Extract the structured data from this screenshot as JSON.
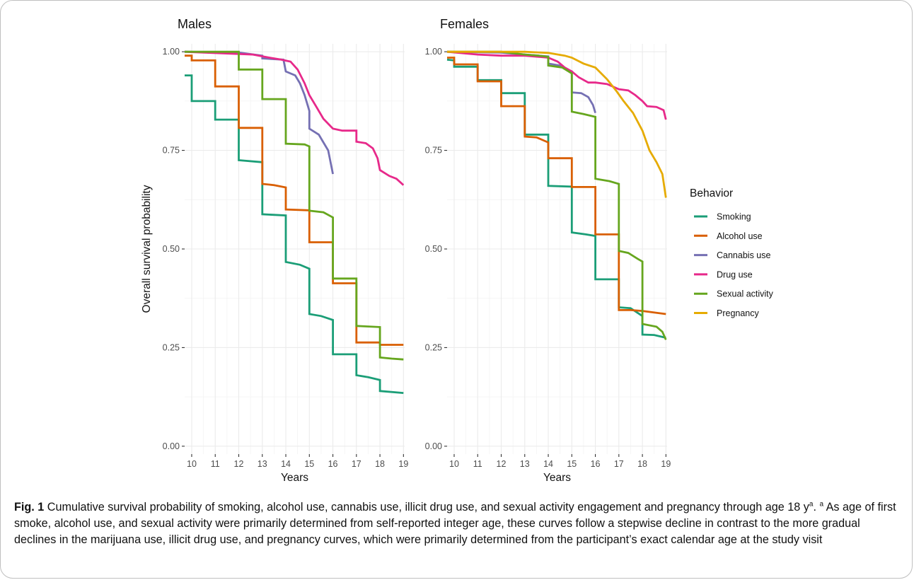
{
  "chart_data": [
    {
      "type": "line",
      "title": "Males",
      "xlabel": "Years",
      "ylabel": "Overall survival probability",
      "x_ticks": [
        10,
        11,
        12,
        13,
        14,
        15,
        16,
        17,
        18,
        19
      ],
      "y_ticks": [
        "0.00",
        "0.25",
        "0.50",
        "0.75",
        "1.00"
      ],
      "xlim": [
        9.7,
        19.05
      ],
      "ylim": [
        -0.02,
        1.02
      ],
      "grid": true,
      "series": [
        {
          "name": "Smoking",
          "color": "#1b9e77",
          "step": true,
          "points": [
            [
              9.7,
              0.94
            ],
            [
              10,
              0.94
            ],
            [
              10,
              0.875
            ],
            [
              11,
              0.875
            ],
            [
              11,
              0.828
            ],
            [
              12,
              0.828
            ],
            [
              12,
              0.725
            ],
            [
              13,
              0.72
            ],
            [
              13,
              0.588
            ],
            [
              14,
              0.585
            ],
            [
              14,
              0.467
            ],
            [
              14.6,
              0.46
            ],
            [
              15,
              0.45
            ],
            [
              15,
              0.335
            ],
            [
              15.5,
              0.33
            ],
            [
              16,
              0.32
            ],
            [
              16,
              0.233
            ],
            [
              17,
              0.233
            ],
            [
              17,
              0.18
            ],
            [
              17.5,
              0.175
            ],
            [
              18,
              0.168
            ],
            [
              18,
              0.14
            ],
            [
              19,
              0.135
            ]
          ]
        },
        {
          "name": "Alcohol use",
          "color": "#d95f02",
          "step": true,
          "points": [
            [
              9.7,
              0.99
            ],
            [
              10,
              0.99
            ],
            [
              10,
              0.978
            ],
            [
              11,
              0.978
            ],
            [
              11,
              0.912
            ],
            [
              12,
              0.912
            ],
            [
              12,
              0.807
            ],
            [
              13,
              0.807
            ],
            [
              13,
              0.665
            ],
            [
              13.5,
              0.662
            ],
            [
              14,
              0.656
            ],
            [
              14,
              0.6
            ],
            [
              15,
              0.598
            ],
            [
              15,
              0.517
            ],
            [
              16,
              0.517
            ],
            [
              16,
              0.413
            ],
            [
              17,
              0.413
            ],
            [
              17,
              0.263
            ],
            [
              18,
              0.263
            ],
            [
              18,
              0.257
            ],
            [
              19,
              0.257
            ]
          ]
        },
        {
          "name": "Cannabis use",
          "color": "#7570b3",
          "step": false,
          "points": [
            [
              9.7,
              1.0
            ],
            [
              12,
              0.998
            ],
            [
              13,
              0.99
            ],
            [
              13,
              0.983
            ],
            [
              13.9,
              0.98
            ],
            [
              14,
              0.95
            ],
            [
              14.4,
              0.94
            ],
            [
              14.6,
              0.92
            ],
            [
              14.8,
              0.89
            ],
            [
              15,
              0.85
            ],
            [
              15,
              0.805
            ],
            [
              15.4,
              0.79
            ],
            [
              15.6,
              0.77
            ],
            [
              15.8,
              0.75
            ],
            [
              16,
              0.69
            ]
          ]
        },
        {
          "name": "Drug use",
          "color": "#e7298a",
          "step": false,
          "points": [
            [
              9.7,
              1.0
            ],
            [
              12.6,
              0.993
            ],
            [
              13.3,
              0.985
            ],
            [
              13.8,
              0.98
            ],
            [
              14.2,
              0.975
            ],
            [
              14.5,
              0.955
            ],
            [
              14.8,
              0.92
            ],
            [
              15,
              0.89
            ],
            [
              15.3,
              0.86
            ],
            [
              15.6,
              0.83
            ],
            [
              16,
              0.805
            ],
            [
              16.4,
              0.8
            ],
            [
              17,
              0.8
            ],
            [
              17,
              0.772
            ],
            [
              17.4,
              0.768
            ],
            [
              17.7,
              0.755
            ],
            [
              17.9,
              0.73
            ],
            [
              18,
              0.7
            ],
            [
              18.4,
              0.685
            ],
            [
              18.7,
              0.678
            ],
            [
              19,
              0.662
            ]
          ]
        },
        {
          "name": "Sexual activity",
          "color": "#66a61e",
          "step": true,
          "points": [
            [
              9.7,
              1.0
            ],
            [
              11,
              1.0
            ],
            [
              12,
              1.0
            ],
            [
              12,
              0.955
            ],
            [
              13,
              0.955
            ],
            [
              13,
              0.88
            ],
            [
              14,
              0.88
            ],
            [
              14,
              0.767
            ],
            [
              14.8,
              0.765
            ],
            [
              15,
              0.76
            ],
            [
              15,
              0.597
            ],
            [
              15.6,
              0.593
            ],
            [
              16,
              0.58
            ],
            [
              16,
              0.425
            ],
            [
              17,
              0.425
            ],
            [
              17,
              0.305
            ],
            [
              18,
              0.302
            ],
            [
              18,
              0.225
            ],
            [
              18.5,
              0.222
            ],
            [
              19,
              0.22
            ]
          ]
        },
        {
          "name": "Pregnancy",
          "color": "#e6ab02",
          "step": false,
          "points": []
        }
      ]
    },
    {
      "type": "line",
      "title": "Females",
      "xlabel": "Years",
      "ylabel": "",
      "x_ticks": [
        10,
        11,
        12,
        13,
        14,
        15,
        16,
        17,
        18,
        19
      ],
      "y_ticks": [
        "0.00",
        "0.25",
        "0.50",
        "0.75",
        "1.00"
      ],
      "xlim": [
        9.7,
        19.05
      ],
      "ylim": [
        -0.02,
        1.02
      ],
      "grid": true,
      "series": [
        {
          "name": "Smoking",
          "color": "#1b9e77",
          "step": true,
          "points": [
            [
              9.7,
              0.98
            ],
            [
              10,
              0.978
            ],
            [
              10,
              0.962
            ],
            [
              11,
              0.962
            ],
            [
              11,
              0.928
            ],
            [
              12,
              0.928
            ],
            [
              12,
              0.895
            ],
            [
              13,
              0.895
            ],
            [
              13,
              0.79
            ],
            [
              14,
              0.79
            ],
            [
              14,
              0.66
            ],
            [
              15,
              0.658
            ],
            [
              15,
              0.542
            ],
            [
              15.6,
              0.537
            ],
            [
              16,
              0.533
            ],
            [
              16,
              0.423
            ],
            [
              17,
              0.423
            ],
            [
              17,
              0.352
            ],
            [
              17.5,
              0.35
            ],
            [
              18,
              0.33
            ],
            [
              18,
              0.283
            ],
            [
              18.5,
              0.282
            ],
            [
              19,
              0.275
            ]
          ]
        },
        {
          "name": "Alcohol use",
          "color": "#d95f02",
          "step": true,
          "points": [
            [
              9.7,
              0.985
            ],
            [
              10,
              0.985
            ],
            [
              10,
              0.968
            ],
            [
              11,
              0.968
            ],
            [
              11,
              0.925
            ],
            [
              12,
              0.925
            ],
            [
              12,
              0.862
            ],
            [
              13,
              0.862
            ],
            [
              13,
              0.785
            ],
            [
              13.5,
              0.783
            ],
            [
              14,
              0.77
            ],
            [
              14,
              0.73
            ],
            [
              15,
              0.73
            ],
            [
              15,
              0.657
            ],
            [
              16,
              0.657
            ],
            [
              16,
              0.537
            ],
            [
              17,
              0.537
            ],
            [
              17,
              0.345
            ],
            [
              17.5,
              0.345
            ],
            [
              18,
              0.343
            ],
            [
              19,
              0.335
            ]
          ]
        },
        {
          "name": "Cannabis use",
          "color": "#7570b3",
          "step": false,
          "points": [
            [
              9.7,
              1.0
            ],
            [
              12,
              0.998
            ],
            [
              13,
              0.993
            ],
            [
              14,
              0.988
            ],
            [
              14,
              0.97
            ],
            [
              14.5,
              0.965
            ],
            [
              14.8,
              0.955
            ],
            [
              15,
              0.95
            ],
            [
              15,
              0.897
            ],
            [
              15.4,
              0.895
            ],
            [
              15.7,
              0.885
            ],
            [
              15.9,
              0.865
            ],
            [
              16,
              0.845
            ]
          ]
        },
        {
          "name": "Drug use",
          "color": "#e7298a",
          "step": false,
          "points": [
            [
              9.7,
              1.0
            ],
            [
              11,
              0.993
            ],
            [
              12,
              0.99
            ],
            [
              13,
              0.99
            ],
            [
              14,
              0.985
            ],
            [
              14.4,
              0.975
            ],
            [
              14.7,
              0.96
            ],
            [
              15,
              0.95
            ],
            [
              15.3,
              0.935
            ],
            [
              15.7,
              0.922
            ],
            [
              16,
              0.922
            ],
            [
              16.5,
              0.918
            ],
            [
              17,
              0.905
            ],
            [
              17.4,
              0.902
            ],
            [
              17.7,
              0.89
            ],
            [
              18,
              0.875
            ],
            [
              18.2,
              0.862
            ],
            [
              18.6,
              0.86
            ],
            [
              18.9,
              0.852
            ],
            [
              19,
              0.828
            ]
          ]
        },
        {
          "name": "Sexual activity",
          "color": "#66a61e",
          "step": true,
          "points": [
            [
              9.7,
              1.0
            ],
            [
              12,
              1.0
            ],
            [
              13,
              0.993
            ],
            [
              13.6,
              0.99
            ],
            [
              14,
              0.987
            ],
            [
              14,
              0.965
            ],
            [
              14.6,
              0.96
            ],
            [
              15,
              0.945
            ],
            [
              15,
              0.848
            ],
            [
              15.5,
              0.842
            ],
            [
              16,
              0.835
            ],
            [
              16,
              0.678
            ],
            [
              16.6,
              0.672
            ],
            [
              17,
              0.665
            ],
            [
              17,
              0.495
            ],
            [
              17.4,
              0.49
            ],
            [
              17.8,
              0.475
            ],
            [
              18,
              0.468
            ],
            [
              18,
              0.31
            ],
            [
              18.6,
              0.303
            ],
            [
              18.85,
              0.29
            ],
            [
              19,
              0.27
            ]
          ]
        },
        {
          "name": "Pregnancy",
          "color": "#e6ab02",
          "step": false,
          "points": [
            [
              9.7,
              1.0
            ],
            [
              13,
              1.0
            ],
            [
              14,
              0.997
            ],
            [
              14.7,
              0.99
            ],
            [
              15,
              0.985
            ],
            [
              15.5,
              0.97
            ],
            [
              16,
              0.96
            ],
            [
              16.5,
              0.93
            ],
            [
              16.9,
              0.9
            ],
            [
              17.2,
              0.875
            ],
            [
              17.6,
              0.845
            ],
            [
              18,
              0.8
            ],
            [
              18.3,
              0.75
            ],
            [
              18.6,
              0.72
            ],
            [
              18.85,
              0.69
            ],
            [
              19,
              0.63
            ]
          ]
        }
      ]
    }
  ],
  "legend": {
    "title": "Behavior",
    "items": [
      {
        "label": "Smoking",
        "color": "#1b9e77"
      },
      {
        "label": "Alcohol use",
        "color": "#d95f02"
      },
      {
        "label": "Cannabis use",
        "color": "#7570b3"
      },
      {
        "label": "Drug use",
        "color": "#e7298a"
      },
      {
        "label": "Sexual activity",
        "color": "#66a61e"
      },
      {
        "label": "Pregnancy",
        "color": "#e6ab02"
      }
    ]
  },
  "caption": {
    "label": "Fig. 1",
    "text_a": " Cumulative survival probability of smoking, alcohol use, cannabis use, illicit drug use, and sexual activity engagement and pregnancy through age 18 y",
    "sup_a": "a",
    "text_b": ". ",
    "sup_b": "a",
    "text_c": " As age of first smoke, alcohol use, and sexual activity were primarily determined from self-reported integer age, these curves follow a stepwise decline in contrast to the more gradual declines in the marijuana use, illicit drug use, and pregnancy curves, which were primarily determined from the participant’s exact calendar age at the study visit"
  }
}
